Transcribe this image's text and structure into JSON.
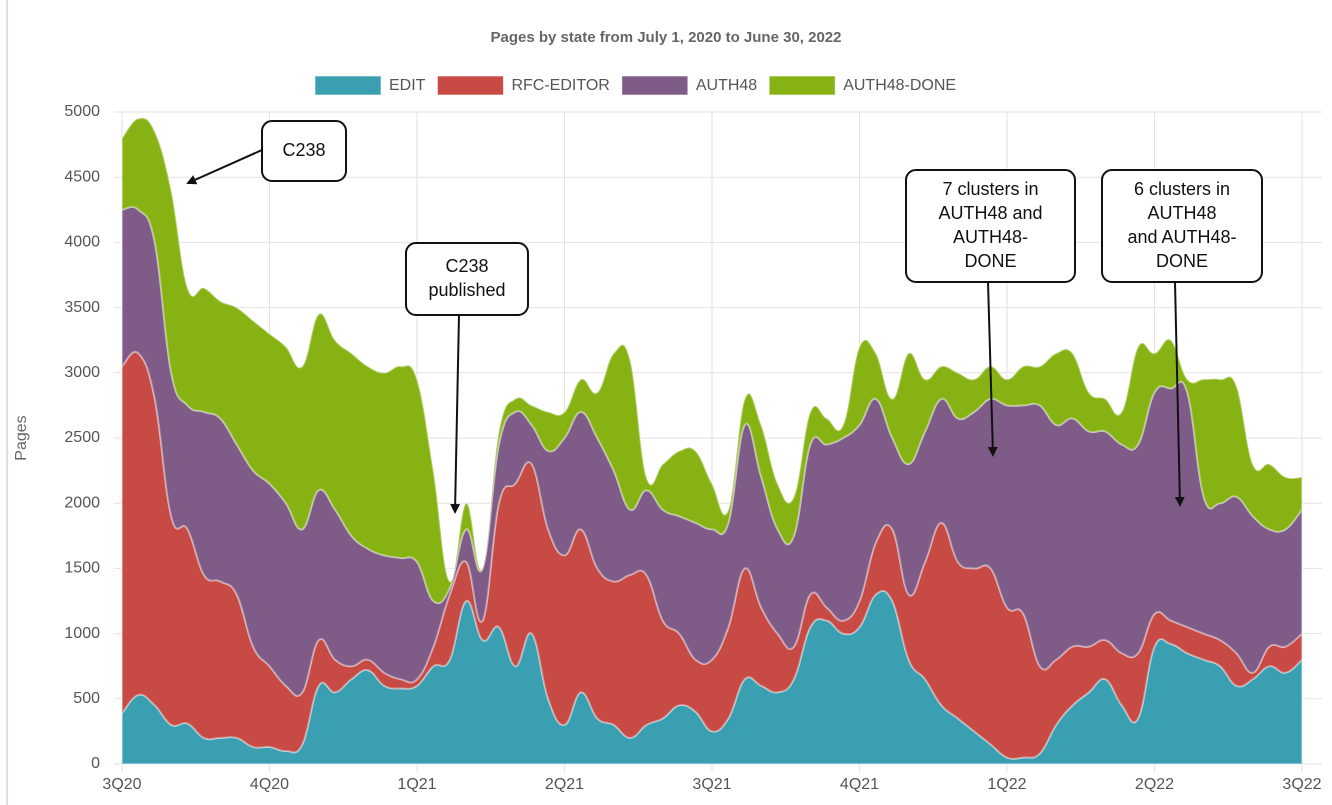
{
  "chart_data": {
    "type": "stacked-area",
    "title": "Pages by state from July 1, 2020 to June 30, 2022",
    "y_label": "Pages",
    "categories": [
      "3Q20",
      null,
      null,
      null,
      null,
      null,
      null,
      null,
      null,
      "4Q20",
      null,
      null,
      null,
      null,
      null,
      null,
      null,
      null,
      "1Q21",
      null,
      null,
      null,
      null,
      null,
      null,
      null,
      null,
      "2Q21",
      null,
      null,
      null,
      null,
      null,
      null,
      null,
      null,
      "3Q21",
      null,
      null,
      null,
      null,
      null,
      null,
      null,
      null,
      "4Q21",
      null,
      null,
      null,
      null,
      null,
      null,
      null,
      null,
      "1Q22",
      null,
      null,
      null,
      null,
      null,
      null,
      null,
      null,
      "2Q22",
      null,
      null,
      null,
      null,
      null,
      null,
      null,
      null,
      "3Q22"
    ],
    "series": [
      {
        "name": "EDIT",
        "color": "#3a9fb0",
        "values": [
          390,
          530,
          450,
          300,
          310,
          200,
          200,
          200,
          130,
          130,
          100,
          150,
          600,
          550,
          650,
          720,
          600,
          580,
          600,
          750,
          800,
          1250,
          950,
          1050,
          750,
          1000,
          500,
          300,
          550,
          350,
          300,
          200,
          300,
          350,
          450,
          400,
          250,
          350,
          650,
          600,
          550,
          650,
          1050,
          1100,
          1000,
          1050,
          1300,
          1250,
          800,
          650,
          450,
          350,
          250,
          150,
          50,
          50,
          80,
          300,
          450,
          550,
          650,
          450,
          350,
          900,
          920,
          850,
          800,
          750,
          600,
          650,
          750,
          700,
          800
        ]
      },
      {
        "name": "RFC-EDITOR",
        "color": "#c84a44",
        "values": [
          2660,
          2620,
          2350,
          1600,
          1490,
          1250,
          1200,
          1100,
          770,
          620,
          500,
          400,
          350,
          250,
          100,
          80,
          100,
          70,
          50,
          150,
          500,
          300,
          150,
          950,
          1400,
          1300,
          1300,
          1300,
          1250,
          1150,
          1100,
          1250,
          1150,
          750,
          550,
          400,
          550,
          700,
          850,
          600,
          450,
          250,
          250,
          100,
          100,
          200,
          400,
          550,
          500,
          900,
          1400,
          1200,
          1250,
          1350,
          1150,
          1100,
          670,
          500,
          450,
          350,
          300,
          400,
          500,
          250,
          180,
          200,
          200,
          200,
          250,
          50,
          150,
          200,
          200
        ]
      },
      {
        "name": "AUTH48",
        "color": "#7e5c87",
        "values": [
          1200,
          1100,
          1200,
          1100,
          950,
          1250,
          1250,
          1150,
          1350,
          1400,
          1400,
          1250,
          1150,
          1150,
          1000,
          850,
          900,
          930,
          900,
          350,
          50,
          250,
          400,
          450,
          550,
          300,
          600,
          900,
          900,
          1000,
          850,
          500,
          650,
          850,
          900,
          1050,
          1000,
          800,
          1100,
          1000,
          800,
          850,
          1150,
          1250,
          1400,
          1350,
          1100,
          700,
          1000,
          1000,
          950,
          1100,
          1200,
          1300,
          1550,
          1600,
          2000,
          1800,
          1750,
          1650,
          1600,
          1600,
          1600,
          1700,
          1780,
          1800,
          1050,
          1050,
          1200,
          1200,
          900,
          900,
          950
        ]
      },
      {
        "name": "AUTH48-DONE",
        "color": "#86b313",
        "values": [
          550,
          700,
          850,
          1400,
          900,
          950,
          900,
          1050,
          1150,
          1150,
          1200,
          1250,
          1350,
          1300,
          1400,
          1400,
          1400,
          1470,
          1400,
          1000,
          50,
          200,
          0,
          100,
          100,
          150,
          300,
          200,
          250,
          350,
          900,
          1150,
          100,
          350,
          500,
          550,
          350,
          100,
          200,
          400,
          350,
          300,
          250,
          200,
          100,
          600,
          350,
          300,
          850,
          400,
          250,
          350,
          250,
          250,
          200,
          300,
          300,
          550,
          500,
          300,
          250,
          250,
          750,
          300,
          370,
          100,
          900,
          950,
          850,
          400,
          500,
          400,
          250
        ]
      }
    ],
    "ylim": [
      0,
      5000
    ],
    "yticks": [
      0,
      500,
      1000,
      1500,
      2000,
      2500,
      3000,
      3500,
      4000,
      4500,
      5000
    ],
    "grid": true,
    "legend": "top",
    "annotations": [
      {
        "lines": [
          "C238"
        ]
      },
      {
        "lines": [
          "C238",
          "published"
        ]
      },
      {
        "lines": [
          "7 clusters in",
          "AUTH48 and",
          "AUTH48-",
          "DONE"
        ]
      },
      {
        "lines": [
          "6 clusters in",
          "AUTH48",
          "and AUTH48-",
          "DONE"
        ]
      }
    ]
  }
}
